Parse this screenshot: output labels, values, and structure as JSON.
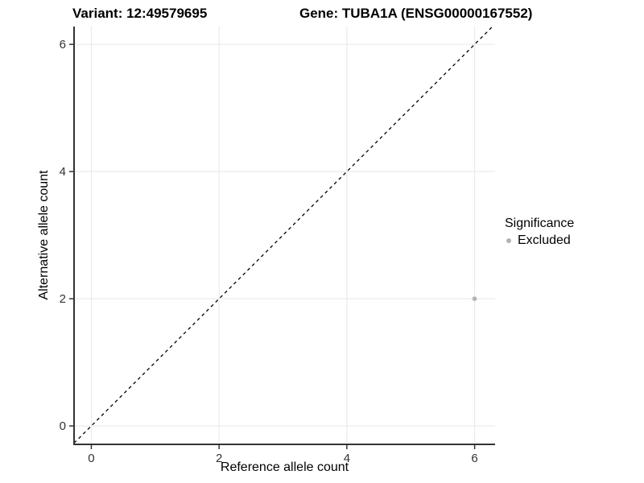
{
  "titles": {
    "variant": "Variant: 12:49579695",
    "gene": "Gene: TUBA1A (ENSG00000167552)"
  },
  "chart_data": {
    "type": "scatter",
    "xlabel": "Reference allele count",
    "ylabel": "Alternative allele count",
    "xticks": [
      0,
      2,
      4,
      6
    ],
    "yticks": [
      0,
      2,
      4,
      6
    ],
    "xlim": [
      -0.27,
      6.32
    ],
    "ylim": [
      -0.29,
      6.28
    ],
    "grid": true,
    "series": [
      {
        "name": "Excluded",
        "color": "#b3b3b3",
        "points": [
          {
            "x": 6,
            "y": 2
          }
        ]
      }
    ],
    "identity_line": {
      "slope": 1,
      "intercept": 0,
      "style": "dashed",
      "color": "#000000"
    },
    "legend": {
      "title": "Significance",
      "position": "right",
      "entries": [
        {
          "label": "Excluded",
          "color": "#b3b3b3"
        }
      ]
    }
  },
  "colors": {
    "background": "#ffffff",
    "grid": "#ebebeb",
    "axis": "#333333",
    "tick_label": "#333333"
  }
}
